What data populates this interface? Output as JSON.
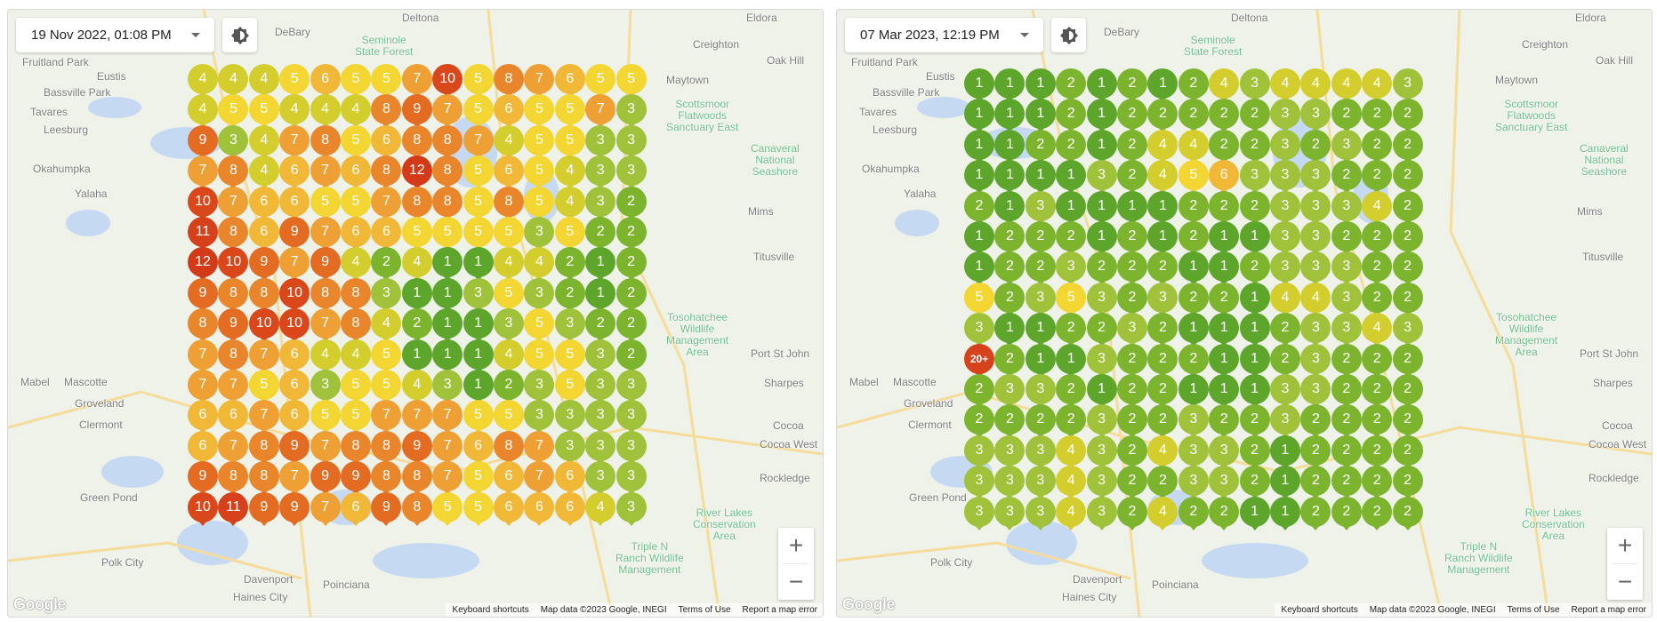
{
  "maps": [
    {
      "datetime": "19 Nov 2022, 01:08 PM",
      "grid": [
        [
          "4",
          "4",
          "4",
          "5",
          "6",
          "5",
          "5",
          "7",
          "10",
          "5",
          "8",
          "7",
          "6",
          "5",
          "5"
        ],
        [
          "4",
          "5",
          "5",
          "4",
          "4",
          "4",
          "8",
          "9",
          "7",
          "5",
          "6",
          "5",
          "5",
          "7",
          "3"
        ],
        [
          "9",
          "3",
          "4",
          "7",
          "8",
          "5",
          "6",
          "8",
          "8",
          "7",
          "4",
          "5",
          "5",
          "3",
          "3"
        ],
        [
          "7",
          "8",
          "4",
          "6",
          "7",
          "6",
          "8",
          "12",
          "8",
          "5",
          "6",
          "5",
          "4",
          "3",
          "3"
        ],
        [
          "10",
          "7",
          "6",
          "6",
          "5",
          "5",
          "7",
          "8",
          "8",
          "5",
          "8",
          "5",
          "4",
          "3",
          "2"
        ],
        [
          "11",
          "8",
          "6",
          "9",
          "7",
          "6",
          "6",
          "5",
          "5",
          "5",
          "5",
          "3",
          "5",
          "2",
          "2"
        ],
        [
          "12",
          "10",
          "9",
          "7",
          "9",
          "4",
          "2",
          "4",
          "1",
          "1",
          "4",
          "4",
          "2",
          "1",
          "2"
        ],
        [
          "9",
          "8",
          "8",
          "10",
          "8",
          "8",
          "3",
          "1",
          "1",
          "3",
          "5",
          "3",
          "2",
          "1",
          "2"
        ],
        [
          "8",
          "9",
          "10",
          "10",
          "7",
          "8",
          "4",
          "2",
          "1",
          "1",
          "3",
          "5",
          "3",
          "2",
          "2"
        ],
        [
          "7",
          "8",
          "7",
          "6",
          "4",
          "4",
          "5",
          "1",
          "1",
          "1",
          "4",
          "5",
          "5",
          "3",
          "2"
        ],
        [
          "7",
          "7",
          "5",
          "6",
          "3",
          "5",
          "5",
          "4",
          "3",
          "1",
          "2",
          "3",
          "5",
          "3",
          "3"
        ],
        [
          "6",
          "6",
          "7",
          "6",
          "5",
          "5",
          "7",
          "7",
          "7",
          "5",
          "5",
          "3",
          "3",
          "3",
          "3"
        ],
        [
          "6",
          "7",
          "8",
          "9",
          "7",
          "8",
          "8",
          "9",
          "7",
          "6",
          "8",
          "7",
          "3",
          "3",
          "3"
        ],
        [
          "9",
          "8",
          "8",
          "7",
          "9",
          "9",
          "8",
          "8",
          "7",
          "5",
          "6",
          "7",
          "6",
          "3",
          "3"
        ],
        [
          "10",
          "11",
          "9",
          "9",
          "7",
          "6",
          "9",
          "8",
          "5",
          "5",
          "6",
          "6",
          "6",
          "4",
          "3"
        ]
      ]
    },
    {
      "datetime": "07 Mar 2023, 12:19 PM",
      "grid": [
        [
          "1",
          "1",
          "1",
          "2",
          "1",
          "2",
          "1",
          "2",
          "4",
          "3",
          "4",
          "4",
          "4",
          "4",
          "3"
        ],
        [
          "1",
          "1",
          "1",
          "2",
          "1",
          "2",
          "2",
          "2",
          "2",
          "2",
          "3",
          "3",
          "2",
          "2",
          "2"
        ],
        [
          "1",
          "1",
          "2",
          "2",
          "1",
          "2",
          "4",
          "4",
          "2",
          "2",
          "3",
          "2",
          "3",
          "2",
          "2"
        ],
        [
          "1",
          "1",
          "1",
          "1",
          "3",
          "2",
          "4",
          "5",
          "6",
          "3",
          "3",
          "3",
          "2",
          "2",
          "2"
        ],
        [
          "2",
          "1",
          "3",
          "1",
          "1",
          "1",
          "1",
          "2",
          "2",
          "2",
          "3",
          "3",
          "3",
          "4",
          "2"
        ],
        [
          "1",
          "2",
          "2",
          "2",
          "1",
          "2",
          "1",
          "2",
          "1",
          "1",
          "3",
          "3",
          "2",
          "2",
          "2"
        ],
        [
          "1",
          "2",
          "2",
          "3",
          "2",
          "2",
          "2",
          "1",
          "1",
          "2",
          "3",
          "3",
          "3",
          "2",
          "2"
        ],
        [
          "5",
          "2",
          "3",
          "5",
          "3",
          "2",
          "3",
          "2",
          "2",
          "1",
          "4",
          "4",
          "3",
          "2",
          "2"
        ],
        [
          "3",
          "1",
          "1",
          "2",
          "2",
          "3",
          "2",
          "1",
          "1",
          "1",
          "2",
          "3",
          "3",
          "4",
          "3"
        ],
        [
          "20+",
          "2",
          "1",
          "1",
          "3",
          "2",
          "2",
          "2",
          "1",
          "1",
          "2",
          "3",
          "2",
          "2",
          "2"
        ],
        [
          "2",
          "3",
          "3",
          "2",
          "1",
          "2",
          "2",
          "1",
          "1",
          "1",
          "3",
          "3",
          "2",
          "2",
          "2"
        ],
        [
          "2",
          "2",
          "2",
          "2",
          "3",
          "2",
          "2",
          "3",
          "2",
          "2",
          "3",
          "2",
          "2",
          "2",
          "2"
        ],
        [
          "3",
          "3",
          "3",
          "4",
          "3",
          "2",
          "4",
          "3",
          "3",
          "2",
          "1",
          "2",
          "2",
          "2",
          "2"
        ],
        [
          "3",
          "3",
          "3",
          "4",
          "3",
          "2",
          "2",
          "3",
          "3",
          "2",
          "1",
          "2",
          "2",
          "2",
          "2"
        ],
        [
          "3",
          "3",
          "3",
          "4",
          "3",
          "2",
          "4",
          "2",
          "2",
          "1",
          "1",
          "2",
          "2",
          "2",
          "2"
        ]
      ]
    }
  ],
  "color_scale": {
    "1": "#5ea62b",
    "2": "#7db42e",
    "3": "#a0c13a",
    "4": "#d3cd2e",
    "5": "#f3d632",
    "6": "#f1b838",
    "7": "#eea034",
    "8": "#e9862c",
    "9": "#e36b22",
    "10": "#d9471b",
    "11": "#d6401a",
    "12": "#d33b18",
    "20+": "#d5421c"
  },
  "places": [
    "Deltona",
    "Eldora",
    "Creighton",
    "Oak Hill",
    "Fruitland Park",
    "Bassville Park",
    "Leesburg",
    "Maytown",
    "Okahumpka",
    "Yalaha",
    "Mims",
    "Titusville",
    "Mascotte",
    "Groveland",
    "Clermont",
    "Port St John",
    "Sharpes",
    "Cocoa",
    "Cocoa West",
    "Rockledge",
    "Green Pond",
    "Polk City",
    "Davenport",
    "Poinciana",
    "Haines City",
    "Mabel",
    "Tavares",
    "Eustis",
    "DeBary"
  ],
  "parks": [
    "Seminole\nState Forest",
    "Scottsmoor\nFlatwoods\nSanctuary East",
    "Canaveral\nNational\nSeashore",
    "Tosohatchee\nWildlife\nManagement\nArea",
    "River Lakes\nConservation\nArea",
    "Triple N\nRanch Wildlife\nManagement"
  ],
  "controls": {
    "zoom_in": "+",
    "zoom_out": "−",
    "theme_icon": "brightness-icon",
    "logo": "Google"
  },
  "footer": [
    "Keyboard shortcuts",
    "Map data ©2023 Google, INEGI",
    "Terms of Use",
    "Report a map error"
  ]
}
